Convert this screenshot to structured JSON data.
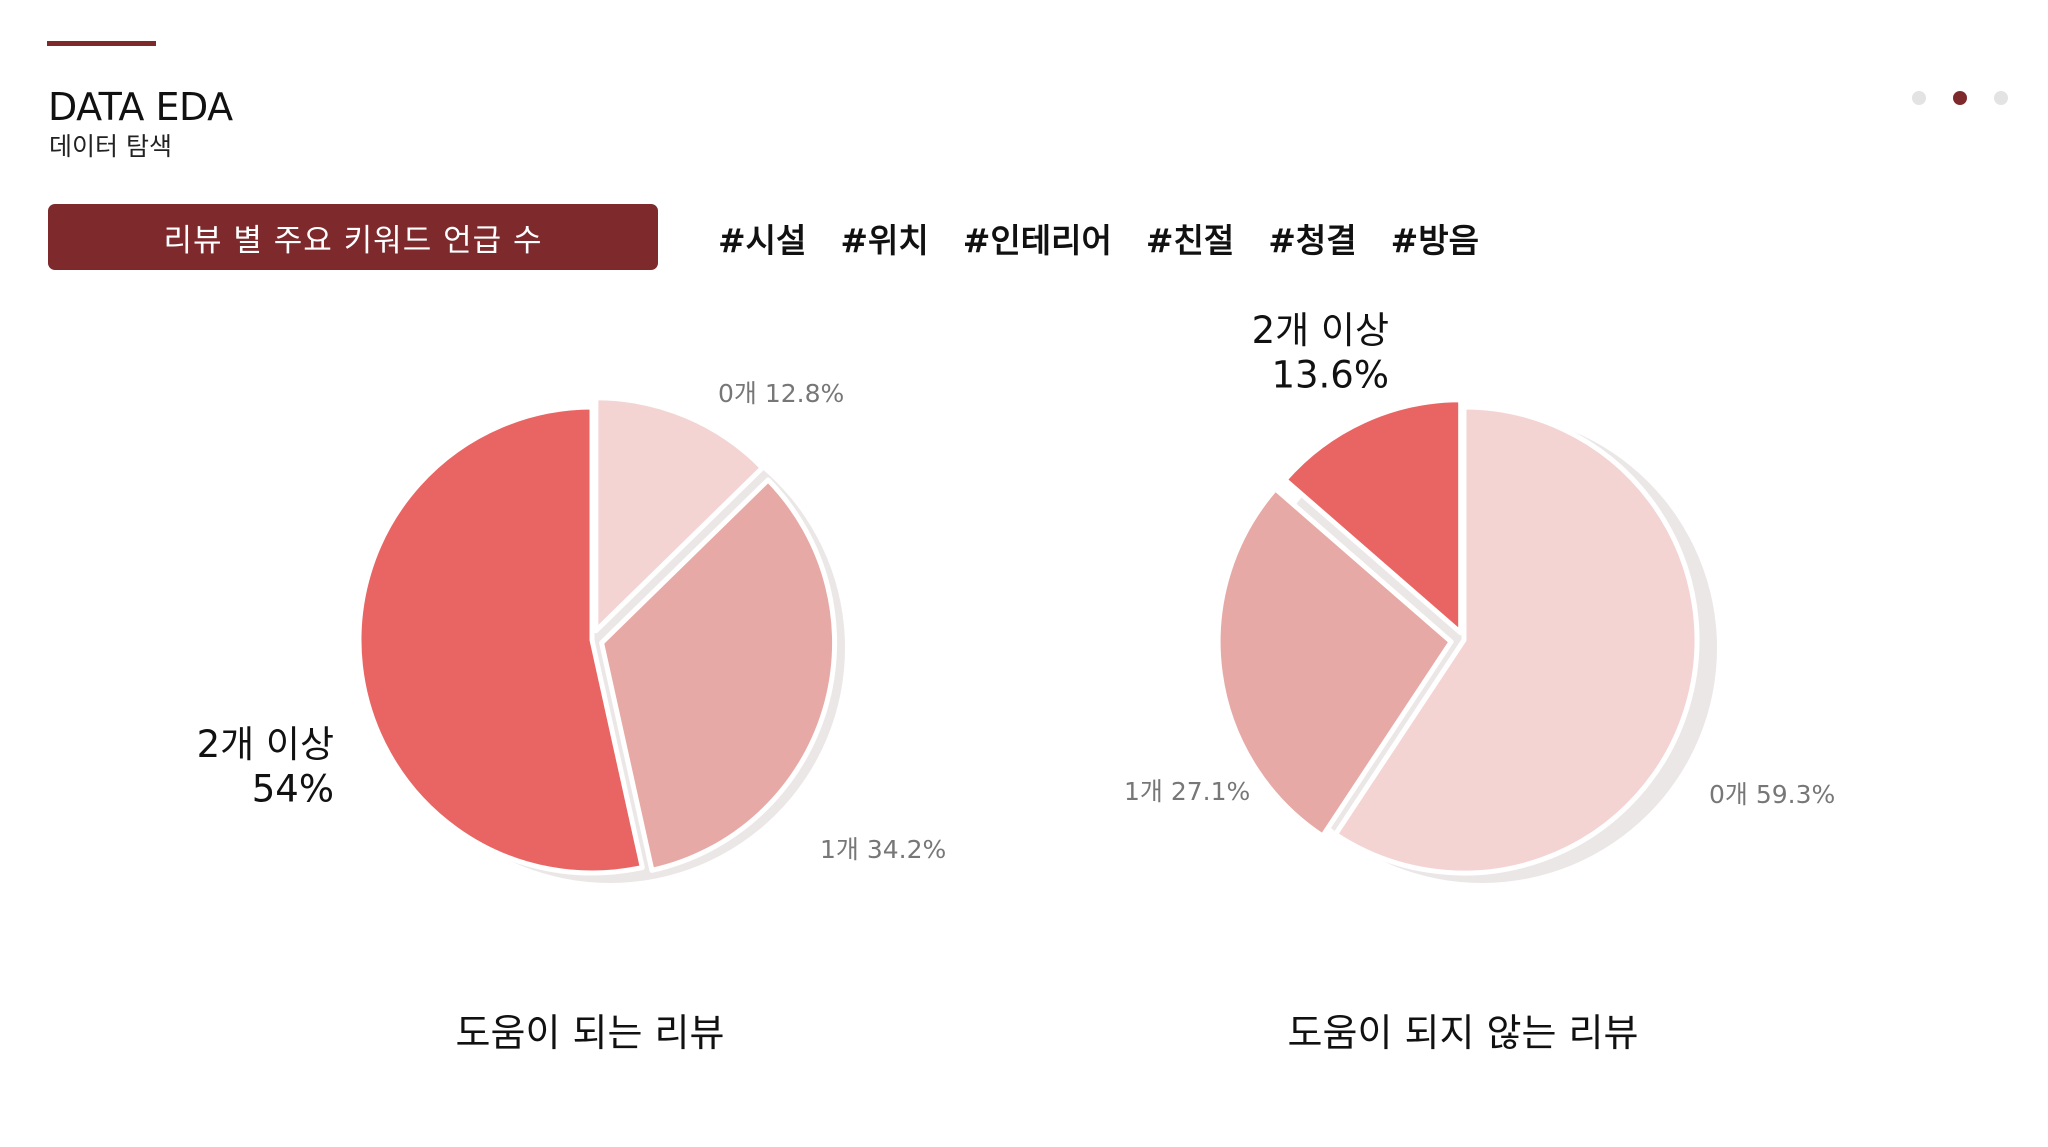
{
  "header": {
    "title": "DATA EDA",
    "subtitle": "데이터 탐색"
  },
  "banner": {
    "label": "리뷰 별 주요 키워드 언급 수"
  },
  "keywords": [
    "#시설",
    "#위치",
    "#인테리어",
    "#친절",
    "#청결",
    "#방음"
  ],
  "colors": {
    "accent": "#7e2a2c",
    "slice_2plus": "#e86563",
    "slice_1": "#e7a9a5",
    "slice_0": "#f3d4d3",
    "shadow": "#ebe7e6"
  },
  "chart_data": [
    {
      "type": "pie",
      "title": "도움이 되는 리뷰",
      "slices": [
        {
          "label": "0개",
          "value": 12.8,
          "display": "0개 12.8%"
        },
        {
          "label": "1개",
          "value": 34.2,
          "display": "1개 34.2%"
        },
        {
          "label": "2개 이상",
          "value": 54,
          "display": "54%"
        }
      ]
    },
    {
      "type": "pie",
      "title": "도움이 되지 않는 리뷰",
      "slices": [
        {
          "label": "0개",
          "value": 59.3,
          "display": "0개 59.3%"
        },
        {
          "label": "1개",
          "value": 27.1,
          "display": "1개 27.1%"
        },
        {
          "label": "2개 이상",
          "value": 13.6,
          "display": "13.6%"
        }
      ]
    }
  ]
}
